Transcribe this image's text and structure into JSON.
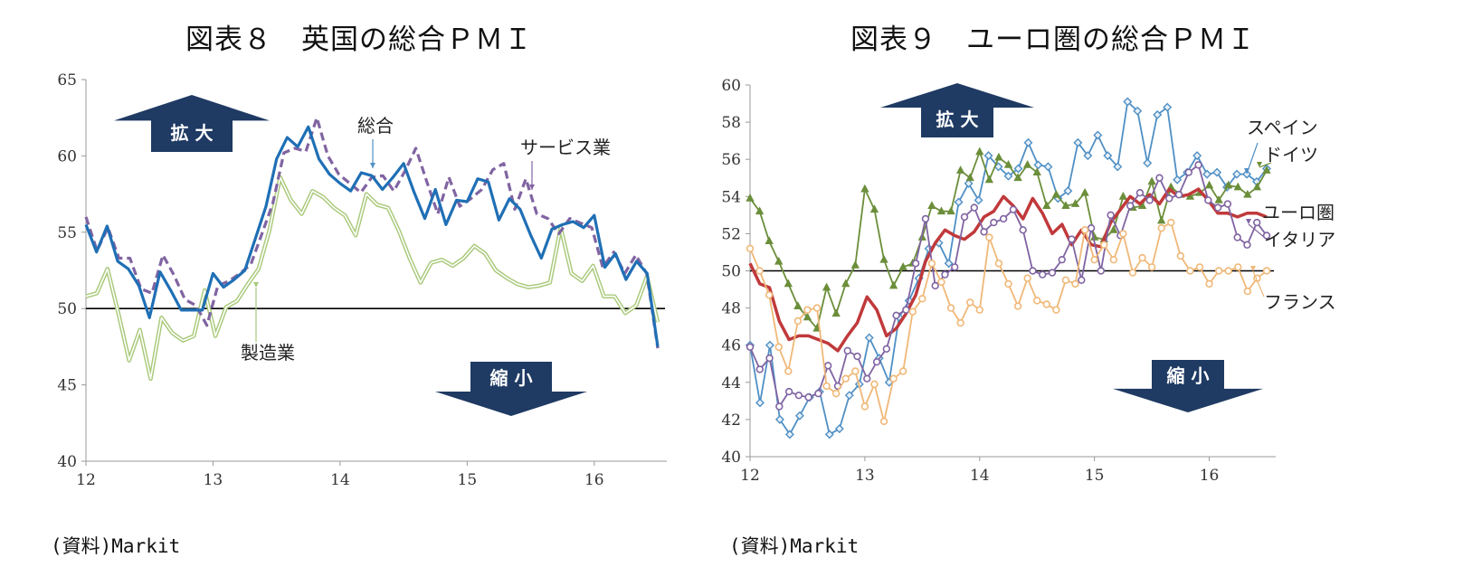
{
  "chart_data": [
    {
      "type": "line",
      "title": "図表８　英国の総合ＰＭＩ",
      "source": "(資料)Markit",
      "ylim": [
        40,
        65
      ],
      "yticks": [
        "40",
        "45",
        "50",
        "55",
        "60",
        "65"
      ],
      "xticks": [
        "12",
        "13",
        "14",
        "15",
        "16"
      ],
      "xrange": [
        12,
        16.5
      ],
      "reference_line": 50,
      "grid": false,
      "arrows": {
        "up": "拡 大",
        "down": "縮 小"
      },
      "series": [
        {
          "name": "製造業",
          "color": "#a9c97a",
          "style": "double",
          "values": [
            50.8,
            51.0,
            52.6,
            49.7,
            46.6,
            48.6,
            45.4,
            49.4,
            48.4,
            47.9,
            48.2,
            51.2,
            48.2,
            50.1,
            50.5,
            51.6,
            52.6,
            55.1,
            58.6,
            57.1,
            56.2,
            57.7,
            57.3,
            56.6,
            56.1,
            54.8,
            57.5,
            56.8,
            56.6,
            55.1,
            53.3,
            51.7,
            53.0,
            53.2,
            52.8,
            53.3,
            54.1,
            53.6,
            52.5,
            52.0,
            51.6,
            51.4,
            51.5,
            51.7,
            55.3,
            52.3,
            51.8,
            52.8,
            50.8,
            50.8,
            49.7,
            50.2,
            52.1,
            49.1
          ]
        },
        {
          "name": "サービス業",
          "color": "#8064a2",
          "style": "dashed",
          "values": [
            56.0,
            53.8,
            55.3,
            53.3,
            53.3,
            51.3,
            51.0,
            53.5,
            52.2,
            50.6,
            50.2,
            48.9,
            51.5,
            51.8,
            52.3,
            52.9,
            54.9,
            56.9,
            60.2,
            60.5,
            60.3,
            62.5,
            60.0,
            58.8,
            58.2,
            57.6,
            58.6,
            58.7,
            57.7,
            59.0,
            60.5,
            58.3,
            56.2,
            58.6,
            56.7,
            57.2,
            57.8,
            59.1,
            59.5,
            56.5,
            58.5,
            56.2,
            55.9,
            54.9,
            55.9,
            55.6,
            55.3,
            52.7,
            53.7,
            52.3,
            53.5,
            52.3,
            47.4
          ]
        },
        {
          "name": "総合",
          "color": "#1f6fb5",
          "style": "solid",
          "values": [
            55.5,
            53.7,
            55.4,
            53.1,
            52.6,
            51.5,
            49.4,
            52.4,
            51.2,
            49.9,
            49.9,
            49.9,
            52.3,
            51.4,
            51.9,
            52.5,
            54.6,
            56.7,
            59.8,
            61.2,
            60.6,
            61.9,
            59.8,
            58.8,
            58.2,
            57.7,
            58.9,
            58.7,
            57.8,
            58.6,
            59.5,
            57.6,
            55.9,
            57.8,
            55.5,
            57.1,
            57.0,
            58.5,
            58.3,
            55.8,
            57.2,
            56.5,
            54.8,
            53.3,
            55.2,
            55.5,
            55.7,
            55.3,
            56.1,
            52.7,
            53.6,
            51.9,
            53.1,
            52.3,
            47.5
          ]
        }
      ],
      "series_labels": [
        "総合",
        "サービス業",
        "製造業"
      ]
    },
    {
      "type": "line",
      "title": "図表９　ユーロ圏の総合ＰＭＩ",
      "source": "(資料)Markit",
      "ylim": [
        40,
        60
      ],
      "yticks": [
        "40",
        "42",
        "44",
        "46",
        "48",
        "50",
        "52",
        "54",
        "56",
        "58",
        "60"
      ],
      "xticks": [
        "12",
        "13",
        "14",
        "15",
        "16"
      ],
      "xrange": [
        12,
        16.5
      ],
      "reference_line": 50,
      "grid": false,
      "arrows": {
        "up": "拡 大",
        "down": "縮 小"
      },
      "series": [
        {
          "name": "スペイン",
          "color": "#4f8fc4",
          "marker": "diamond",
          "values": [
            46.0,
            42.9,
            46.0,
            42.0,
            41.2,
            42.2,
            43.2,
            43.5,
            41.2,
            41.5,
            43.3,
            43.9,
            46.4,
            45.3,
            44.0,
            47.5,
            48.4,
            49.6,
            51.2,
            51.5,
            50.4,
            53.7,
            54.7,
            53.8,
            56.2,
            55.6,
            55.1,
            55.5,
            56.9,
            55.7,
            55.6,
            53.9,
            54.3,
            56.9,
            56.2,
            57.3,
            56.2,
            55.6,
            59.1,
            58.6,
            55.8,
            58.4,
            58.8,
            54.9,
            55.3,
            56.2,
            55.2,
            55.3,
            54.5,
            55.2,
            55.2,
            54.8,
            55.5
          ]
        },
        {
          "name": "ドイツ",
          "color": "#6b8e3a",
          "marker": "triangle",
          "values": [
            53.9,
            53.2,
            51.6,
            50.5,
            49.3,
            48.1,
            47.5,
            46.9,
            49.1,
            47.7,
            49.3,
            50.3,
            54.4,
            53.3,
            50.6,
            49.2,
            50.2,
            50.4,
            51.8,
            53.5,
            53.2,
            53.2,
            55.4,
            55.0,
            56.4,
            54.9,
            56.1,
            55.7,
            55.0,
            55.7,
            55.3,
            53.5,
            54.1,
            53.5,
            53.6,
            54.2,
            51.8,
            51.7,
            52.2,
            54.0,
            53.4,
            53.5,
            54.8,
            52.7,
            54.5,
            54.1,
            54.0,
            54.2,
            54.6,
            53.8,
            54.6,
            54.5,
            54.1,
            54.5,
            55.4
          ]
        },
        {
          "name": "ユーロ圏",
          "color": "#c0393b",
          "marker": "none",
          "values": [
            50.4,
            49.3,
            49.1,
            47.3,
            46.3,
            46.5,
            46.5,
            46.3,
            46.1,
            45.7,
            46.5,
            47.2,
            48.6,
            47.9,
            46.5,
            46.9,
            47.7,
            48.7,
            50.5,
            51.5,
            52.2,
            51.9,
            51.7,
            52.1,
            52.9,
            53.2,
            54.0,
            53.5,
            52.8,
            53.9,
            53.1,
            52.0,
            52.5,
            51.4,
            52.2,
            51.4,
            51.3,
            52.6,
            53.3,
            54.0,
            53.6,
            54.1,
            53.6,
            54.4,
            54.0,
            54.1,
            54.4,
            53.8,
            53.1,
            53.1,
            52.9,
            53.1,
            53.1,
            52.9
          ]
        },
        {
          "name": "イタリア",
          "color": "#8064a2",
          "marker": "circle",
          "values": [
            45.9,
            44.7,
            45.3,
            42.7,
            43.5,
            43.3,
            43.2,
            43.4,
            44.9,
            43.8,
            45.7,
            45.4,
            44.2,
            45.1,
            45.8,
            47.6,
            47.9,
            50.4,
            52.8,
            49.2,
            49.8,
            50.2,
            52.9,
            53.4,
            52.1,
            52.6,
            52.8,
            53.3,
            52.2,
            50.0,
            49.8,
            49.9,
            50.6,
            51.7,
            49.5,
            52.3,
            50.0,
            53.0,
            51.9,
            53.5,
            54.2,
            53.8,
            55.0,
            53.9,
            54.1,
            55.3,
            55.7,
            53.8,
            53.4,
            53.6,
            51.8,
            51.4,
            52.6,
            51.9
          ]
        },
        {
          "name": "フランス",
          "color": "#f0b878",
          "marker": "circle",
          "values": [
            51.2,
            50.0,
            48.7,
            45.9,
            44.6,
            47.3,
            47.9,
            48.0,
            43.8,
            43.4,
            44.2,
            44.6,
            42.7,
            43.9,
            41.9,
            44.2,
            44.6,
            47.8,
            48.5,
            50.4,
            49.4,
            48.0,
            47.2,
            48.3,
            47.9,
            51.8,
            50.4,
            49.3,
            48.1,
            49.6,
            48.4,
            48.2,
            47.9,
            49.5,
            49.3,
            52.2,
            50.6,
            51.4,
            50.6,
            52.0,
            49.9,
            50.7,
            50.2,
            52.3,
            52.6,
            50.8,
            50.0,
            50.2,
            49.3,
            50.0,
            50.0,
            50.2,
            48.9,
            49.6,
            50.0
          ]
        }
      ],
      "series_labels": [
        "スペイン",
        "ドイツ",
        "ユーロ圏",
        "イタリア",
        "フランス"
      ]
    }
  ]
}
